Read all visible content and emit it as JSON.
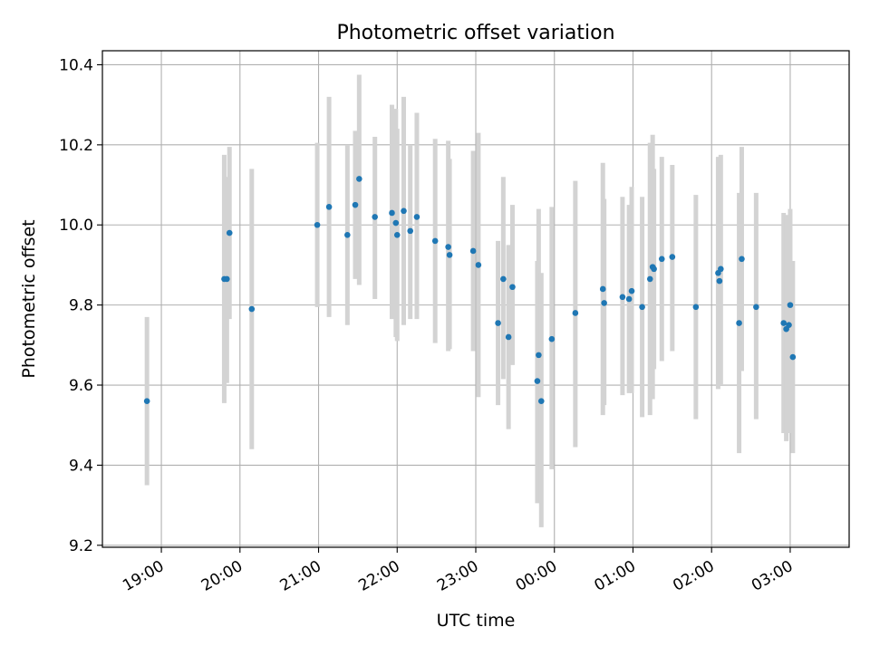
{
  "chart_data": {
    "type": "scatter",
    "title": "Photometric offset variation",
    "xlabel": "UTC time",
    "ylabel": "Photometric offset",
    "x_axis_kind": "time (UTC, spanning midnight)",
    "xlim": [
      "18:15",
      "03:45"
    ],
    "ylim": [
      9.195,
      10.435
    ],
    "x_ticks": [
      "19:00",
      "20:00",
      "21:00",
      "22:00",
      "23:00",
      "00:00",
      "01:00",
      "02:00",
      "03:00"
    ],
    "y_ticks": [
      "9.2",
      "9.4",
      "9.6",
      "9.8",
      "10.0",
      "10.2",
      "10.4"
    ],
    "grid": true,
    "x_tick_label_rotation": "rotated ~30 degrees",
    "colors": {
      "point": "#1f77b4",
      "errorbar": "#d3d3d3",
      "grid": "#b0b0b0"
    },
    "series": [
      {
        "points": [
          {
            "x": "18:49",
            "y": 9.56,
            "ylow": 9.35,
            "yhigh": 9.77
          },
          {
            "x": "19:48",
            "y": 9.865,
            "ylow": 9.555,
            "yhigh": 10.175
          },
          {
            "x": "19:50",
            "y": 9.865,
            "ylow": 9.605,
            "yhigh": 10.12
          },
          {
            "x": "19:52",
            "y": 9.98,
            "ylow": 9.765,
            "yhigh": 10.195
          },
          {
            "x": "20:09",
            "y": 9.79,
            "ylow": 9.44,
            "yhigh": 10.14
          },
          {
            "x": "20:59",
            "y": 10.0,
            "ylow": 9.795,
            "yhigh": 10.205
          },
          {
            "x": "21:08",
            "y": 10.045,
            "ylow": 9.77,
            "yhigh": 10.32
          },
          {
            "x": "21:22",
            "y": 9.975,
            "ylow": 9.75,
            "yhigh": 10.2
          },
          {
            "x": "21:28",
            "y": 10.05,
            "ylow": 9.865,
            "yhigh": 10.235
          },
          {
            "x": "21:31",
            "y": 10.115,
            "ylow": 9.85,
            "yhigh": 10.375
          },
          {
            "x": "21:43",
            "y": 10.02,
            "ylow": 9.815,
            "yhigh": 10.22
          },
          {
            "x": "21:56",
            "y": 10.03,
            "ylow": 9.765,
            "yhigh": 10.3
          },
          {
            "x": "21:59",
            "y": 10.005,
            "ylow": 9.72,
            "yhigh": 10.29
          },
          {
            "x": "22:00",
            "y": 9.975,
            "ylow": 9.71,
            "yhigh": 10.24
          },
          {
            "x": "22:05",
            "y": 10.035,
            "ylow": 9.75,
            "yhigh": 10.32
          },
          {
            "x": "22:10",
            "y": 9.985,
            "ylow": 9.765,
            "yhigh": 10.2
          },
          {
            "x": "22:15",
            "y": 10.02,
            "ylow": 9.765,
            "yhigh": 10.28
          },
          {
            "x": "22:29",
            "y": 9.96,
            "ylow": 9.705,
            "yhigh": 10.215
          },
          {
            "x": "22:39",
            "y": 9.945,
            "ylow": 9.685,
            "yhigh": 10.21
          },
          {
            "x": "22:40",
            "y": 9.925,
            "ylow": 9.69,
            "yhigh": 10.165
          },
          {
            "x": "22:58",
            "y": 9.935,
            "ylow": 9.685,
            "yhigh": 10.185
          },
          {
            "x": "23:02",
            "y": 9.9,
            "ylow": 9.57,
            "yhigh": 10.23
          },
          {
            "x": "23:17",
            "y": 9.755,
            "ylow": 9.55,
            "yhigh": 9.96
          },
          {
            "x": "23:21",
            "y": 9.865,
            "ylow": 9.615,
            "yhigh": 10.12
          },
          {
            "x": "23:25",
            "y": 9.72,
            "ylow": 9.49,
            "yhigh": 9.95
          },
          {
            "x": "23:28",
            "y": 9.845,
            "ylow": 9.65,
            "yhigh": 10.05
          },
          {
            "x": "23:47",
            "y": 9.61,
            "ylow": 9.305,
            "yhigh": 9.91
          },
          {
            "x": "23:48",
            "y": 9.675,
            "ylow": 9.31,
            "yhigh": 10.04
          },
          {
            "x": "23:50",
            "y": 9.56,
            "ylow": 9.245,
            "yhigh": 9.88
          },
          {
            "x": "23:58",
            "y": 9.715,
            "ylow": 9.39,
            "yhigh": 10.045
          },
          {
            "x": "00:16",
            "y": 9.78,
            "ylow": 9.445,
            "yhigh": 10.11
          },
          {
            "x": "00:37",
            "y": 9.84,
            "ylow": 9.525,
            "yhigh": 10.155
          },
          {
            "x": "00:38",
            "y": 9.805,
            "ylow": 9.55,
            "yhigh": 10.065
          },
          {
            "x": "00:52",
            "y": 9.82,
            "ylow": 9.575,
            "yhigh": 10.07
          },
          {
            "x": "00:57",
            "y": 9.815,
            "ylow": 9.58,
            "yhigh": 10.05
          },
          {
            "x": "00:59",
            "y": 9.835,
            "ylow": 9.58,
            "yhigh": 10.095
          },
          {
            "x": "01:07",
            "y": 9.795,
            "ylow": 9.52,
            "yhigh": 10.07
          },
          {
            "x": "01:13",
            "y": 9.865,
            "ylow": 9.525,
            "yhigh": 10.205
          },
          {
            "x": "01:15",
            "y": 9.895,
            "ylow": 9.565,
            "yhigh": 10.225
          },
          {
            "x": "01:16",
            "y": 9.89,
            "ylow": 9.64,
            "yhigh": 10.14
          },
          {
            "x": "01:22",
            "y": 9.915,
            "ylow": 9.66,
            "yhigh": 10.17
          },
          {
            "x": "01:30",
            "y": 9.92,
            "ylow": 9.685,
            "yhigh": 10.15
          },
          {
            "x": "01:48",
            "y": 9.795,
            "ylow": 9.515,
            "yhigh": 10.075
          },
          {
            "x": "02:05",
            "y": 9.88,
            "ylow": 9.59,
            "yhigh": 10.17
          },
          {
            "x": "02:06",
            "y": 9.86,
            "ylow": 9.6,
            "yhigh": 10.12
          },
          {
            "x": "02:07",
            "y": 9.89,
            "ylow": 9.6,
            "yhigh": 10.175
          },
          {
            "x": "02:21",
            "y": 9.755,
            "ylow": 9.43,
            "yhigh": 10.08
          },
          {
            "x": "02:23",
            "y": 9.915,
            "ylow": 9.635,
            "yhigh": 10.195
          },
          {
            "x": "02:34",
            "y": 9.795,
            "ylow": 9.515,
            "yhigh": 10.08
          },
          {
            "x": "02:55",
            "y": 9.755,
            "ylow": 9.48,
            "yhigh": 10.03
          },
          {
            "x": "02:57",
            "y": 9.74,
            "ylow": 9.46,
            "yhigh": 10.025
          },
          {
            "x": "02:59",
            "y": 9.75,
            "ylow": 9.48,
            "yhigh": 10.02
          },
          {
            "x": "03:00",
            "y": 9.8,
            "ylow": 9.56,
            "yhigh": 10.04
          },
          {
            "x": "03:02",
            "y": 9.67,
            "ylow": 9.43,
            "yhigh": 9.91
          }
        ]
      }
    ]
  }
}
